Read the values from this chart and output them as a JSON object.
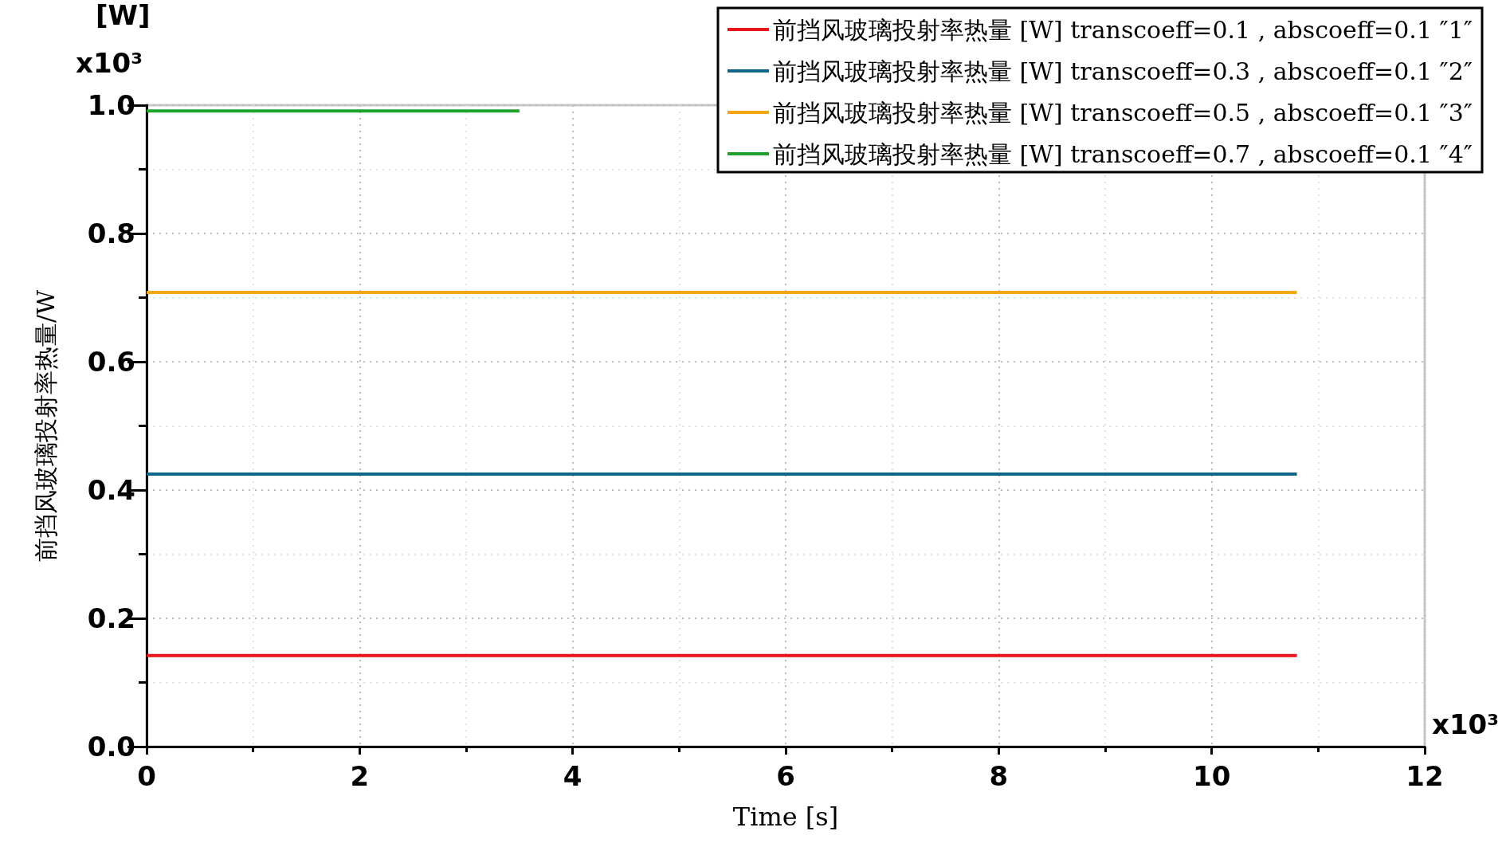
{
  "chart_data": {
    "type": "line",
    "xlabel": "Time [s]",
    "ylabel": "前挡风玻璃投射率热量/W",
    "annotations": [
      "[W]",
      "x10³",
      "x10³"
    ],
    "x": [
      0,
      10.8
    ],
    "series": [
      {
        "name": "前挡风玻璃投射率热量 [W] transcoeff=0.1 , abscoeff=0.1 ″1″",
        "color": "#e8141a",
        "values": [
          0.142,
          0.142
        ]
      },
      {
        "name": "前挡风玻璃投射率热量 [W] transcoeff=0.3 , abscoeff=0.1 ″2″",
        "color": "#0f6688",
        "values": [
          0.425,
          0.425
        ]
      },
      {
        "name": "前挡风玻璃投射率热量 [W] transcoeff=0.5 , abscoeff=0.1 ″3″",
        "color": "#f5a511",
        "values": [
          0.708,
          0.708
        ]
      },
      {
        "name": "前挡风玻璃投射率热量 [W] transcoeff=0.7 , abscoeff=0.1 ″4″",
        "color": "#1fa22b",
        "x": [
          0,
          3.5
        ],
        "values": [
          0.991,
          0.991
        ]
      }
    ],
    "xlim": [
      0,
      12
    ],
    "xticks": [
      0,
      2,
      4,
      6,
      8,
      10,
      12
    ],
    "ylim": [
      0,
      1.0
    ],
    "yticks": [
      {
        "value": 0,
        "label": "0.0"
      },
      {
        "value": 0.2,
        "label": "0.2"
      },
      {
        "value": 0.4,
        "label": "0.4"
      },
      {
        "value": 0.6,
        "label": "0.6"
      },
      {
        "value": 0.8,
        "label": "0.8"
      },
      {
        "value": 1.0,
        "label": "1.0"
      }
    ],
    "grid": true,
    "legend": "top right",
    "marker": "none",
    "line_style": "solid"
  }
}
